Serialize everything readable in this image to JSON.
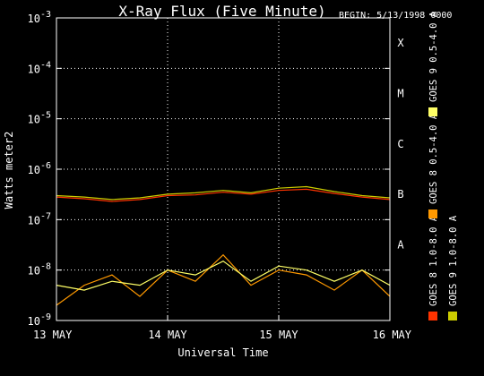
{
  "chart_data": {
    "type": "line",
    "title": "X-Ray Flux (Five Minute)",
    "begin_label": "BEGIN: 5/13/1998 0000",
    "xlabel": "Universal Time",
    "ylabel": "Watts meter2",
    "y_scale": "log",
    "ylim": [
      1e-09,
      0.001
    ],
    "y_ticks": [
      {
        "mantissa": "10",
        "exp": "-9",
        "value": 1e-09
      },
      {
        "mantissa": "10",
        "exp": "-8",
        "value": 1e-08
      },
      {
        "mantissa": "10",
        "exp": "-7",
        "value": 1e-07
      },
      {
        "mantissa": "10",
        "exp": "-6",
        "value": 1e-06
      },
      {
        "mantissa": "10",
        "exp": "-5",
        "value": 1e-05
      },
      {
        "mantissa": "10",
        "exp": "-4",
        "value": 0.0001
      },
      {
        "mantissa": "10",
        "exp": "-3",
        "value": 0.001
      }
    ],
    "x_ticks": [
      "13 MAY",
      "14 MAY",
      "15 MAY",
      "16 MAY"
    ],
    "flare_classes": [
      {
        "label": "A",
        "value": 1e-08
      },
      {
        "label": "B",
        "value": 1e-07
      },
      {
        "label": "C",
        "value": 1e-06
      },
      {
        "label": "M",
        "value": 1e-05
      },
      {
        "label": "X",
        "value": 0.0001
      }
    ],
    "grid": "dotted at decades and day boundaries",
    "series": [
      {
        "name": "GOES 8 1.0-8.0 A",
        "color": "#ff3300",
        "x": [
          0,
          0.25,
          0.5,
          0.75,
          1.0,
          1.25,
          1.5,
          1.75,
          2.0,
          2.25,
          2.5,
          2.75,
          3.0
        ],
        "values": [
          2.8e-07,
          2.6e-07,
          2.3e-07,
          2.5e-07,
          3e-07,
          3.1e-07,
          3.5e-07,
          3.2e-07,
          3.8e-07,
          4e-07,
          3.3e-07,
          2.8e-07,
          2.5e-07
        ]
      },
      {
        "name": "GOES 8 0.5-4.0 A",
        "color": "#ff9900",
        "x": [
          0,
          0.25,
          0.5,
          0.75,
          1.0,
          1.25,
          1.5,
          1.75,
          2.0,
          2.25,
          2.5,
          2.75,
          3.0
        ],
        "values": [
          2e-09,
          5e-09,
          8e-09,
          3e-09,
          1e-08,
          6e-09,
          2e-08,
          5e-09,
          1e-08,
          8e-09,
          4e-09,
          1e-08,
          3e-09
        ]
      },
      {
        "name": "GOES 9 1.0-8.0 A",
        "color": "#cccc00",
        "x": [
          0,
          0.25,
          0.5,
          0.75,
          1.0,
          1.25,
          1.5,
          1.75,
          2.0,
          2.25,
          2.5,
          2.75,
          3.0
        ],
        "values": [
          3e-07,
          2.8e-07,
          2.5e-07,
          2.7e-07,
          3.2e-07,
          3.4e-07,
          3.8e-07,
          3.4e-07,
          4.2e-07,
          4.5e-07,
          3.6e-07,
          3e-07,
          2.7e-07
        ]
      },
      {
        "name": "GOES 9 0.5-4.0 A",
        "color": "#ffff66",
        "x": [
          0,
          0.25,
          0.5,
          0.75,
          1.0,
          1.25,
          1.5,
          1.75,
          2.0,
          2.25,
          2.5,
          2.75,
          3.0
        ],
        "values": [
          5e-09,
          4e-09,
          6e-09,
          5e-09,
          1e-08,
          8e-09,
          1.5e-08,
          6e-09,
          1.2e-08,
          1e-08,
          6e-09,
          1e-08,
          5e-09
        ]
      }
    ]
  }
}
